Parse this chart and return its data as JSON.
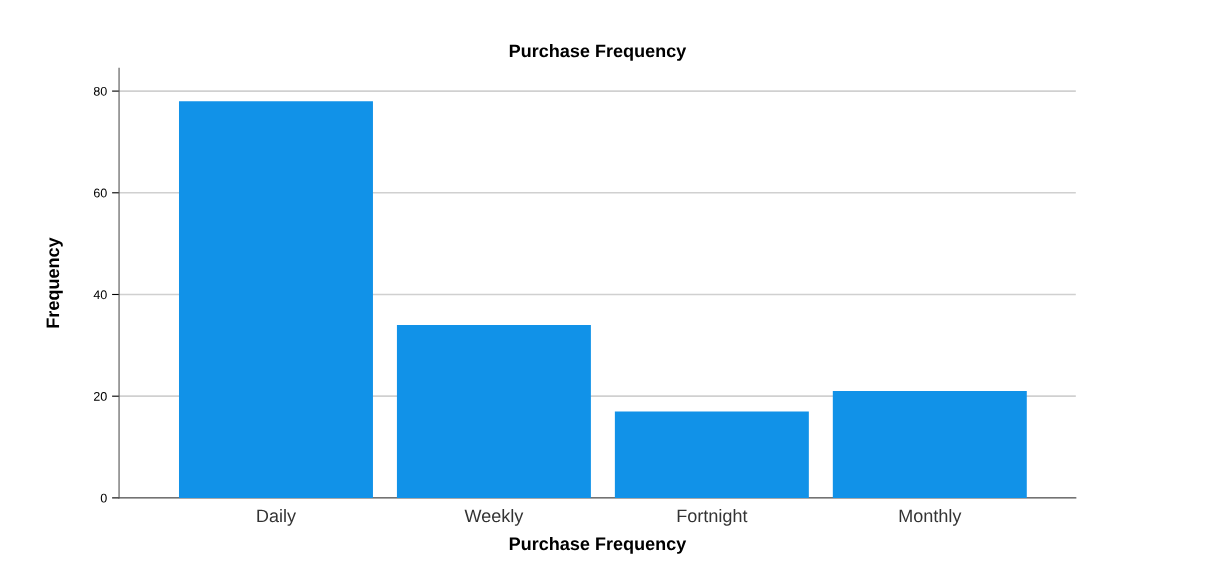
{
  "chart_data": {
    "type": "bar",
    "title": "Purchase Frequency",
    "xlabel": "Purchase Frequency",
    "ylabel": "Frequency",
    "categories": [
      "Daily",
      "Weekly",
      "Fortnight",
      "Monthly"
    ],
    "values": [
      78,
      34,
      17,
      21
    ],
    "color": "#1192e8",
    "ylim": [
      0,
      84.5
    ],
    "yticks": [
      0,
      20,
      40,
      60,
      80
    ],
    "grid": "y"
  }
}
